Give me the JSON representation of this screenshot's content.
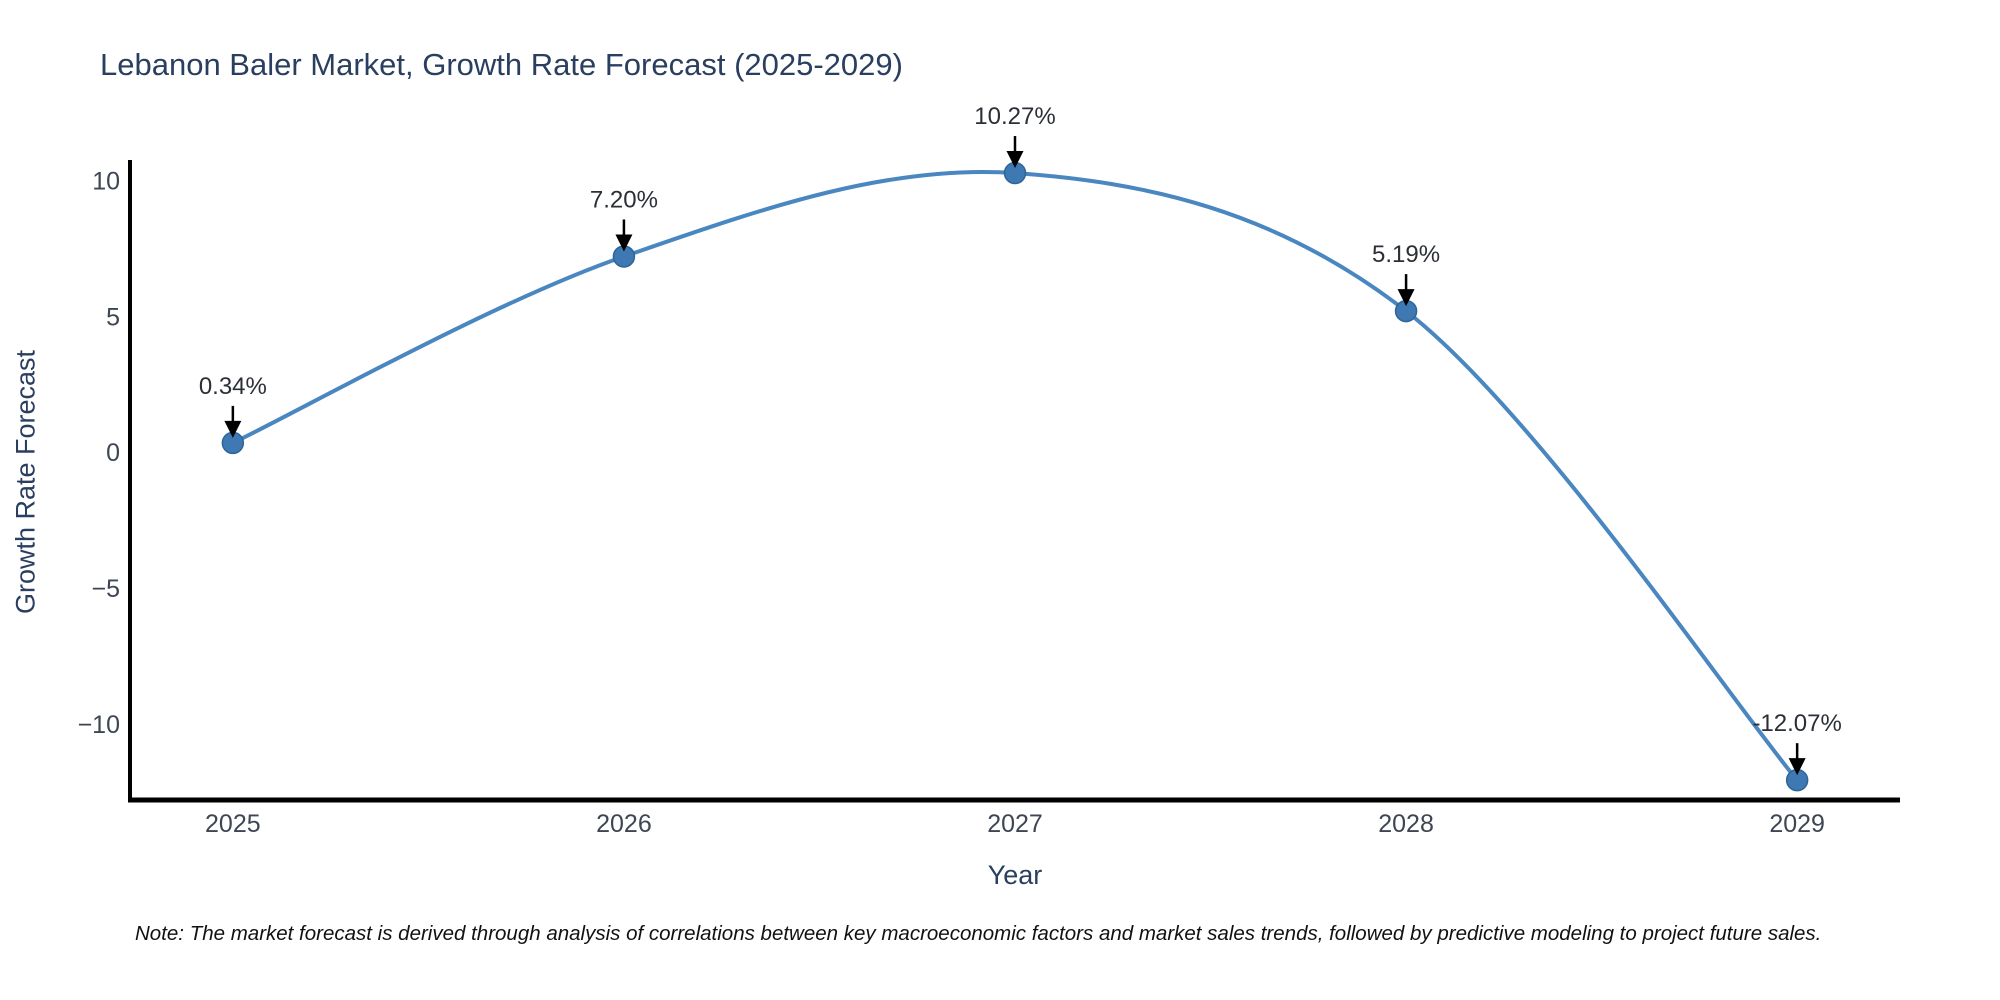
{
  "title": "Lebanon Baler Market, Growth Rate Forecast (2025-2029)",
  "note": "Note: The market forecast is derived through analysis of correlations between key macroeconomic factors and market sales trends, followed by predictive modeling to project future sales.",
  "chart_data": {
    "type": "line",
    "title": "Lebanon Baler Market, Growth Rate Forecast (2025-2029)",
    "xlabel": "Year",
    "ylabel": "Growth Rate Forecast",
    "x": [
      2025,
      2026,
      2027,
      2028,
      2029
    ],
    "values": [
      0.34,
      7.2,
      10.27,
      5.19,
      -12.07
    ],
    "point_labels": [
      "0.34%",
      "7.20%",
      "10.27%",
      "5.19%",
      "-12.07%"
    ],
    "x_tick_labels": [
      "2025",
      "2026",
      "2027",
      "2028",
      "2029"
    ],
    "y_ticks": [
      {
        "value": 10,
        "label": "10"
      },
      {
        "value": 5,
        "label": "5"
      },
      {
        "value": 0,
        "label": "0"
      },
      {
        "value": -5,
        "label": "−5"
      },
      {
        "value": -10,
        "label": "−10"
      }
    ],
    "xlim": [
      2024.737,
      2029.263
    ],
    "ylim": [
      -12.8,
      10.75
    ],
    "grid": false,
    "legend": false,
    "smooth_line": true,
    "annotations_have_arrows": true,
    "colors": {
      "line": "#4a87c0",
      "marker": "#3e79b4",
      "marker_edge": "#2f6496",
      "axis_line": "#000000",
      "arrow": "#000000",
      "title_text": "#2a3f5f",
      "tick_text": "#3d4652"
    }
  }
}
